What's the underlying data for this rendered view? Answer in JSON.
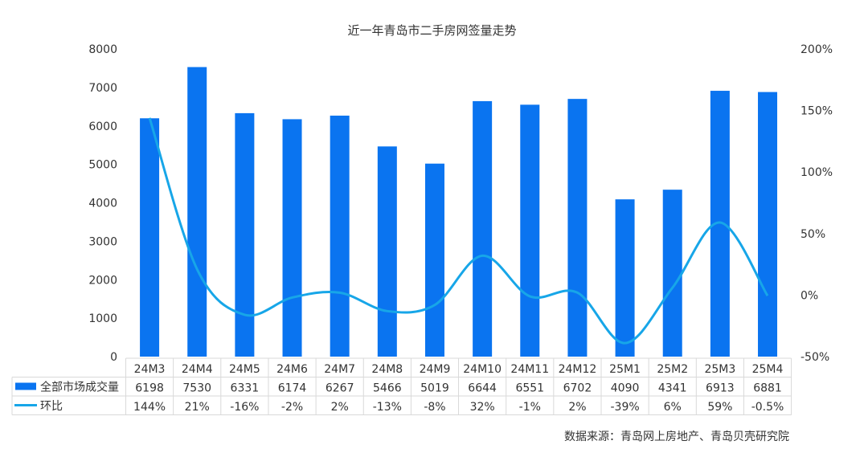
{
  "chart_data": {
    "type": "bar+line",
    "title": "近一年青岛市二手房网签量走势",
    "categories": [
      "24M3",
      "24M4",
      "24M5",
      "24M6",
      "24M7",
      "24M8",
      "24M9",
      "24M10",
      "24M11",
      "24M12",
      "25M1",
      "25M2",
      "25M3",
      "25M4"
    ],
    "series": [
      {
        "name": "全部市场成交量",
        "type": "bar",
        "axis": "left",
        "color": "#0a74f0",
        "values": [
          6198,
          7530,
          6331,
          6174,
          6267,
          5466,
          5019,
          6644,
          6551,
          6702,
          4090,
          4341,
          6913,
          6881
        ],
        "labels": [
          "6198",
          "7530",
          "6331",
          "6174",
          "6267",
          "5466",
          "5019",
          "6644",
          "6551",
          "6702",
          "4090",
          "4341",
          "6913",
          "6881"
        ]
      },
      {
        "name": "环比",
        "type": "line",
        "axis": "right",
        "color": "#17a6e8",
        "values": [
          144,
          21,
          -16,
          -2,
          2,
          -13,
          -8,
          32,
          -1,
          2,
          -39,
          6,
          59,
          -0.5
        ],
        "labels": [
          "144%",
          "21%",
          "-16%",
          "-2%",
          "2%",
          "-13%",
          "-8%",
          "32%",
          "-1%",
          "2%",
          "-39%",
          "6%",
          "59%",
          "-0.5%"
        ]
      }
    ],
    "left_axis": {
      "ylim": [
        0,
        8000
      ],
      "ticks": [
        "0",
        "1000",
        "2000",
        "3000",
        "4000",
        "5000",
        "6000",
        "7000",
        "8000"
      ]
    },
    "right_axis": {
      "ylim": [
        -50,
        200
      ],
      "ticks": [
        "-50%",
        "0%",
        "50%",
        "100%",
        "150%",
        "200%"
      ]
    },
    "legend": "data-table-bottom",
    "grid": false
  },
  "source": "数据来源：青岛网上房地产、青岛贝壳研究院"
}
